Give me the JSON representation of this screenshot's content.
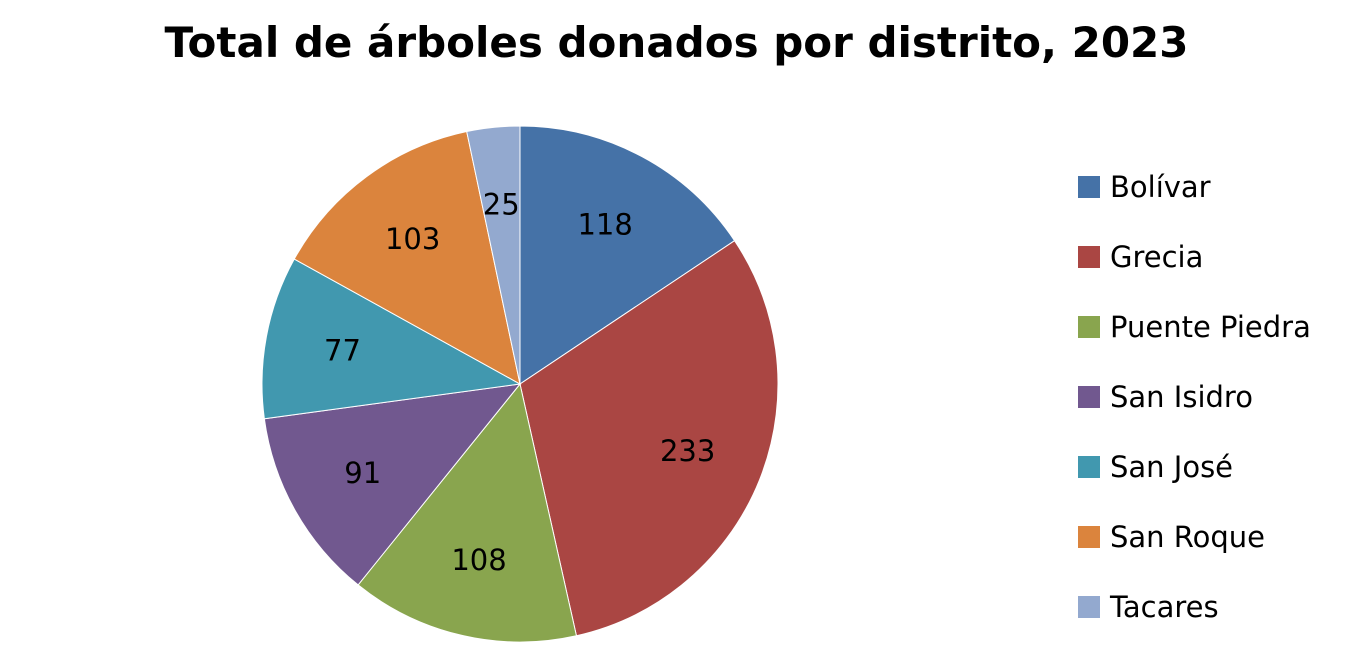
{
  "chart_data": {
    "type": "pie",
    "title": "Total de árboles donados por distrito, 2023",
    "categories": [
      "Bolívar",
      "Grecia",
      "Puente Piedra",
      "San Isidro",
      "San José",
      "San Roque",
      "Tacares"
    ],
    "values": [
      118,
      233,
      108,
      91,
      77,
      103,
      25
    ],
    "data_labels": [
      "118",
      "233",
      "108",
      "91",
      "77",
      "103",
      "25"
    ],
    "colors": [
      "#4572A7",
      "#AA4643",
      "#89A54E",
      "#71588F",
      "#4198AF",
      "#DB843D",
      "#93A9CF"
    ],
    "start_angle": "top, clockwise",
    "legend_position": "right"
  }
}
